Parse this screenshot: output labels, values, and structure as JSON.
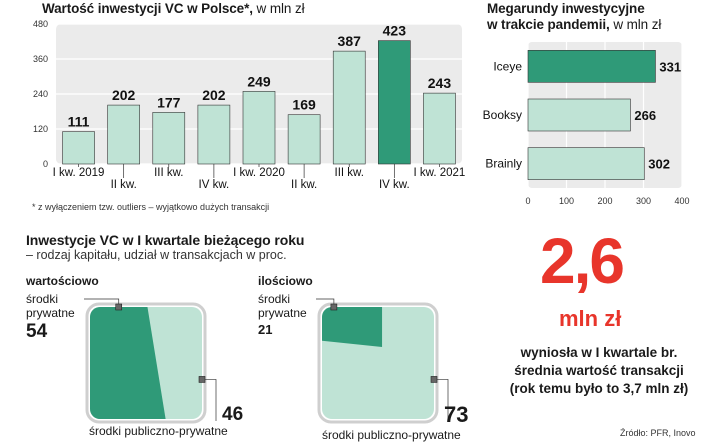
{
  "left_chart": {
    "title": "Wartość inwestycji VC w Polsce*,",
    "unit": "w mln zł",
    "footnote": "* z wyłączeniem tzw. outliers – wyjątkowo dużych transakcji"
  },
  "right_chart": {
    "title_line1": "Megarundy inwestycyjne",
    "title_line2": "w trakcie pandemii,",
    "unit": "w mln zł"
  },
  "pie_section": {
    "title": "Inwestycje VC w I kwartale bieżącego roku",
    "subtitle": "– rodzaj kapitału, udział w transakcjach w proc.",
    "left": {
      "heading": "wartościowo",
      "private_label_line1": "środki",
      "private_label_line2": "prywatne",
      "private_value": "54",
      "public_value": "46",
      "public_label": "środki publiczno-prywatne"
    },
    "right": {
      "heading": "ilościowo",
      "private_label_line1": "środki",
      "private_label_line2": "prywatne",
      "private_value": "21",
      "public_value": "73",
      "public_label": "środki publiczno-prywatne"
    }
  },
  "stat": {
    "value": "2,6",
    "unit": "mln zł",
    "desc_line1": "wyniosła w I kwartale br.",
    "desc_line2": "średnia wartość transakcji",
    "desc_line3": "(rok temu było to 3,7 mln zł)"
  },
  "source": "Źródło: PFR, Inovo",
  "colors": {
    "dark": "#2f9a78",
    "light": "#bfe3d5",
    "panel": "#ebebeb",
    "accent": "#e8352b"
  },
  "chart_data": [
    {
      "type": "bar",
      "title": "Wartość inwestycji VC w Polsce*, w mln zł",
      "categories": [
        "I kw. 2019",
        "II kw.",
        "III kw.",
        "IV kw.",
        "I kw. 2020",
        "II kw.",
        "III kw.",
        "IV kw.",
        "I kw. 2021"
      ],
      "values": [
        111,
        202,
        177,
        202,
        249,
        169,
        387,
        423,
        243
      ],
      "highlight_index": 7,
      "ylim": [
        0,
        480
      ],
      "yticks": [
        0,
        120,
        240,
        360,
        480
      ],
      "grid": true
    },
    {
      "type": "bar",
      "orientation": "horizontal",
      "title": "Megarundy inwestycyjne w trakcie pandemii, w mln zł",
      "categories": [
        "Iceye",
        "Booksy",
        "Brainly"
      ],
      "values": [
        331,
        266,
        302
      ],
      "highlight_index": 0,
      "xlim": [
        0,
        400
      ],
      "xticks": [
        0,
        100,
        200,
        300,
        400
      ],
      "grid": true
    },
    {
      "type": "pie",
      "title": "wartościowo",
      "labels": [
        "środki prywatne",
        "środki publiczno-prywatne"
      ],
      "values": [
        54,
        46
      ]
    },
    {
      "type": "pie",
      "title": "ilościowo",
      "labels": [
        "środki prywatne",
        "środki publiczno-prywatne"
      ],
      "values": [
        21,
        73
      ]
    }
  ]
}
